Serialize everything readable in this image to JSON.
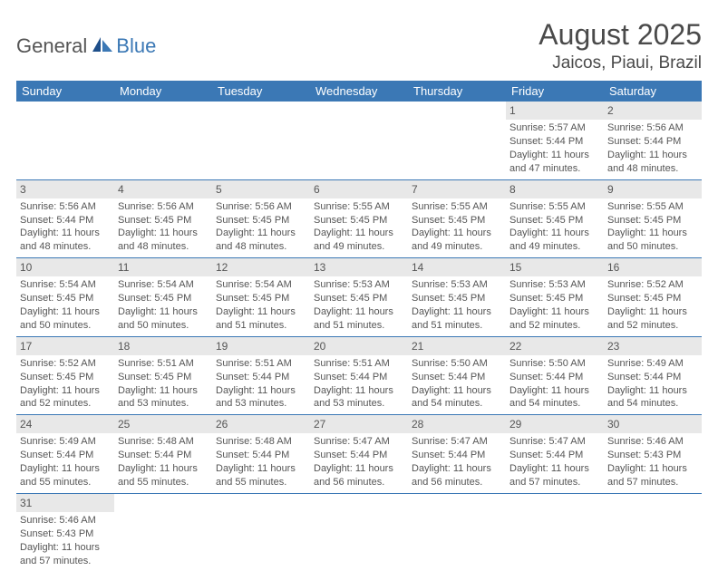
{
  "logo": {
    "text1": "General",
    "text2": "Blue"
  },
  "title": "August 2025",
  "location": "Jaicos, Piaui, Brazil",
  "header_bg": "#3b78b5",
  "header_fg": "#ffffff",
  "daynum_bg": "#e8e8e8",
  "border_color": "#3b78b5",
  "text_color": "#555555",
  "days_of_week": [
    "Sunday",
    "Monday",
    "Tuesday",
    "Wednesday",
    "Thursday",
    "Friday",
    "Saturday"
  ],
  "weeks": [
    [
      null,
      null,
      null,
      null,
      null,
      {
        "n": "1",
        "sr": "Sunrise: 5:57 AM",
        "ss": "Sunset: 5:44 PM",
        "d1": "Daylight: 11 hours",
        "d2": "and 47 minutes."
      },
      {
        "n": "2",
        "sr": "Sunrise: 5:56 AM",
        "ss": "Sunset: 5:44 PM",
        "d1": "Daylight: 11 hours",
        "d2": "and 48 minutes."
      }
    ],
    [
      {
        "n": "3",
        "sr": "Sunrise: 5:56 AM",
        "ss": "Sunset: 5:44 PM",
        "d1": "Daylight: 11 hours",
        "d2": "and 48 minutes."
      },
      {
        "n": "4",
        "sr": "Sunrise: 5:56 AM",
        "ss": "Sunset: 5:45 PM",
        "d1": "Daylight: 11 hours",
        "d2": "and 48 minutes."
      },
      {
        "n": "5",
        "sr": "Sunrise: 5:56 AM",
        "ss": "Sunset: 5:45 PM",
        "d1": "Daylight: 11 hours",
        "d2": "and 48 minutes."
      },
      {
        "n": "6",
        "sr": "Sunrise: 5:55 AM",
        "ss": "Sunset: 5:45 PM",
        "d1": "Daylight: 11 hours",
        "d2": "and 49 minutes."
      },
      {
        "n": "7",
        "sr": "Sunrise: 5:55 AM",
        "ss": "Sunset: 5:45 PM",
        "d1": "Daylight: 11 hours",
        "d2": "and 49 minutes."
      },
      {
        "n": "8",
        "sr": "Sunrise: 5:55 AM",
        "ss": "Sunset: 5:45 PM",
        "d1": "Daylight: 11 hours",
        "d2": "and 49 minutes."
      },
      {
        "n": "9",
        "sr": "Sunrise: 5:55 AM",
        "ss": "Sunset: 5:45 PM",
        "d1": "Daylight: 11 hours",
        "d2": "and 50 minutes."
      }
    ],
    [
      {
        "n": "10",
        "sr": "Sunrise: 5:54 AM",
        "ss": "Sunset: 5:45 PM",
        "d1": "Daylight: 11 hours",
        "d2": "and 50 minutes."
      },
      {
        "n": "11",
        "sr": "Sunrise: 5:54 AM",
        "ss": "Sunset: 5:45 PM",
        "d1": "Daylight: 11 hours",
        "d2": "and 50 minutes."
      },
      {
        "n": "12",
        "sr": "Sunrise: 5:54 AM",
        "ss": "Sunset: 5:45 PM",
        "d1": "Daylight: 11 hours",
        "d2": "and 51 minutes."
      },
      {
        "n": "13",
        "sr": "Sunrise: 5:53 AM",
        "ss": "Sunset: 5:45 PM",
        "d1": "Daylight: 11 hours",
        "d2": "and 51 minutes."
      },
      {
        "n": "14",
        "sr": "Sunrise: 5:53 AM",
        "ss": "Sunset: 5:45 PM",
        "d1": "Daylight: 11 hours",
        "d2": "and 51 minutes."
      },
      {
        "n": "15",
        "sr": "Sunrise: 5:53 AM",
        "ss": "Sunset: 5:45 PM",
        "d1": "Daylight: 11 hours",
        "d2": "and 52 minutes."
      },
      {
        "n": "16",
        "sr": "Sunrise: 5:52 AM",
        "ss": "Sunset: 5:45 PM",
        "d1": "Daylight: 11 hours",
        "d2": "and 52 minutes."
      }
    ],
    [
      {
        "n": "17",
        "sr": "Sunrise: 5:52 AM",
        "ss": "Sunset: 5:45 PM",
        "d1": "Daylight: 11 hours",
        "d2": "and 52 minutes."
      },
      {
        "n": "18",
        "sr": "Sunrise: 5:51 AM",
        "ss": "Sunset: 5:45 PM",
        "d1": "Daylight: 11 hours",
        "d2": "and 53 minutes."
      },
      {
        "n": "19",
        "sr": "Sunrise: 5:51 AM",
        "ss": "Sunset: 5:44 PM",
        "d1": "Daylight: 11 hours",
        "d2": "and 53 minutes."
      },
      {
        "n": "20",
        "sr": "Sunrise: 5:51 AM",
        "ss": "Sunset: 5:44 PM",
        "d1": "Daylight: 11 hours",
        "d2": "and 53 minutes."
      },
      {
        "n": "21",
        "sr": "Sunrise: 5:50 AM",
        "ss": "Sunset: 5:44 PM",
        "d1": "Daylight: 11 hours",
        "d2": "and 54 minutes."
      },
      {
        "n": "22",
        "sr": "Sunrise: 5:50 AM",
        "ss": "Sunset: 5:44 PM",
        "d1": "Daylight: 11 hours",
        "d2": "and 54 minutes."
      },
      {
        "n": "23",
        "sr": "Sunrise: 5:49 AM",
        "ss": "Sunset: 5:44 PM",
        "d1": "Daylight: 11 hours",
        "d2": "and 54 minutes."
      }
    ],
    [
      {
        "n": "24",
        "sr": "Sunrise: 5:49 AM",
        "ss": "Sunset: 5:44 PM",
        "d1": "Daylight: 11 hours",
        "d2": "and 55 minutes."
      },
      {
        "n": "25",
        "sr": "Sunrise: 5:48 AM",
        "ss": "Sunset: 5:44 PM",
        "d1": "Daylight: 11 hours",
        "d2": "and 55 minutes."
      },
      {
        "n": "26",
        "sr": "Sunrise: 5:48 AM",
        "ss": "Sunset: 5:44 PM",
        "d1": "Daylight: 11 hours",
        "d2": "and 55 minutes."
      },
      {
        "n": "27",
        "sr": "Sunrise: 5:47 AM",
        "ss": "Sunset: 5:44 PM",
        "d1": "Daylight: 11 hours",
        "d2": "and 56 minutes."
      },
      {
        "n": "28",
        "sr": "Sunrise: 5:47 AM",
        "ss": "Sunset: 5:44 PM",
        "d1": "Daylight: 11 hours",
        "d2": "and 56 minutes."
      },
      {
        "n": "29",
        "sr": "Sunrise: 5:47 AM",
        "ss": "Sunset: 5:44 PM",
        "d1": "Daylight: 11 hours",
        "d2": "and 57 minutes."
      },
      {
        "n": "30",
        "sr": "Sunrise: 5:46 AM",
        "ss": "Sunset: 5:43 PM",
        "d1": "Daylight: 11 hours",
        "d2": "and 57 minutes."
      }
    ],
    [
      {
        "n": "31",
        "sr": "Sunrise: 5:46 AM",
        "ss": "Sunset: 5:43 PM",
        "d1": "Daylight: 11 hours",
        "d2": "and 57 minutes."
      },
      null,
      null,
      null,
      null,
      null,
      null
    ]
  ]
}
